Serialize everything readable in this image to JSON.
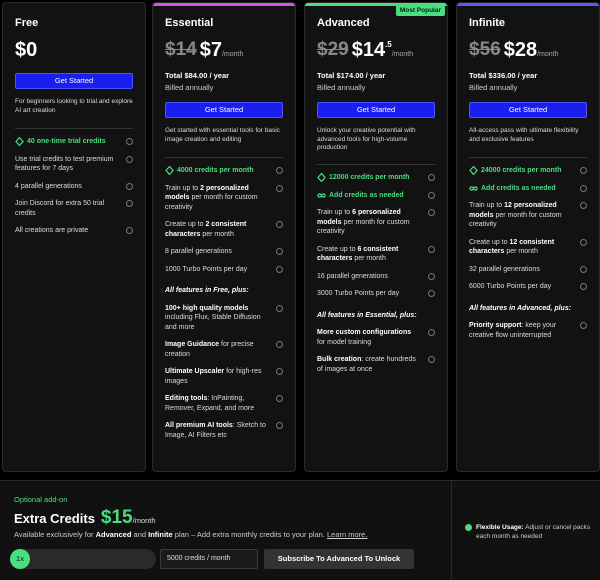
{
  "plans": [
    {
      "name": "Free",
      "price": "$0",
      "button": "Get Started",
      "description": "For beginners looking to trial and explore AI art creation",
      "features": [
        {
          "kind": "highlight",
          "icon": "diamond",
          "parts": [
            {
              "text": "40 one-time trial credits",
              "bold": false
            }
          ]
        },
        {
          "kind": "text",
          "parts": [
            {
              "text": "Use trial credits to test premium features for 7 days",
              "bold": false
            }
          ]
        },
        {
          "kind": "text",
          "parts": [
            {
              "text": "4 parallel generations",
              "bold": false
            }
          ]
        },
        {
          "kind": "text",
          "parts": [
            {
              "text": "Join Discord for extra 50 trial credits",
              "bold": false
            }
          ]
        },
        {
          "kind": "text",
          "parts": [
            {
              "text": "All creations are private",
              "bold": false
            }
          ]
        }
      ]
    },
    {
      "name": "Essential",
      "accent": "#d64ff0",
      "old_price": "$14",
      "price": "$7",
      "period": "/month",
      "total": "Total $84.00 / year",
      "billing": "Billed annually",
      "button": "Get Started",
      "description": "Get started with essential tools for basic image creation and editing",
      "features": [
        {
          "kind": "highlight",
          "icon": "diamond",
          "parts": [
            {
              "text": "4000 credits per month",
              "bold": false
            }
          ]
        },
        {
          "kind": "text",
          "parts": [
            {
              "text": "Train up to ",
              "bold": false
            },
            {
              "text": "2 personalized models",
              "bold": true
            },
            {
              "text": " per month for custom creativity",
              "bold": false
            }
          ]
        },
        {
          "kind": "text",
          "parts": [
            {
              "text": "Create up to ",
              "bold": false
            },
            {
              "text": "2 consistent characters",
              "bold": true
            },
            {
              "text": " per month",
              "bold": false
            }
          ]
        },
        {
          "kind": "text",
          "parts": [
            {
              "text": "8 parallel generations",
              "bold": false
            }
          ]
        },
        {
          "kind": "text",
          "parts": [
            {
              "text": "1000 Turbo Points per day",
              "bold": false
            }
          ]
        },
        {
          "kind": "section",
          "parts": [
            {
              "text": "All features in Free, plus:",
              "bold": true
            }
          ]
        },
        {
          "kind": "text",
          "parts": [
            {
              "text": "100+ high quality models",
              "bold": true
            },
            {
              "text": " including Flux, Stable Diffusion and more",
              "bold": false
            }
          ]
        },
        {
          "kind": "text",
          "parts": [
            {
              "text": "Image Guidance",
              "bold": true
            },
            {
              "text": " for precise creation",
              "bold": false
            }
          ]
        },
        {
          "kind": "text",
          "parts": [
            {
              "text": "Ultimate Upscaler",
              "bold": true
            },
            {
              "text": " for high-res images",
              "bold": false
            }
          ]
        },
        {
          "kind": "text",
          "parts": [
            {
              "text": "Editing tools",
              "bold": true
            },
            {
              "text": ": InPainting, Remover, Expand, and more",
              "bold": false
            }
          ]
        },
        {
          "kind": "text",
          "parts": [
            {
              "text": "All premium AI tools",
              "bold": true
            },
            {
              "text": ": Sketch to Image, AI Filters etc",
              "bold": false
            }
          ]
        }
      ]
    },
    {
      "name": "Advanced",
      "accent": "#4ade80",
      "badge": "Most Popular",
      "old_price": "$29",
      "price": "$14",
      "cents": ".5",
      "period": "/month",
      "total": "Total $174.00 / year",
      "billing": "Billed annually",
      "button": "Get Started",
      "description": "Unlock your creative potential with advanced tools for high-volume production",
      "features": [
        {
          "kind": "highlight",
          "icon": "diamond",
          "parts": [
            {
              "text": "12000 credits per month",
              "bold": false
            }
          ]
        },
        {
          "kind": "highlight",
          "icon": "infinity",
          "parts": [
            {
              "text": "Add credits as needed",
              "bold": false
            }
          ]
        },
        {
          "kind": "text",
          "parts": [
            {
              "text": "Train up to ",
              "bold": false
            },
            {
              "text": "6 personalized models",
              "bold": true
            },
            {
              "text": " per month for custom creativity",
              "bold": false
            }
          ]
        },
        {
          "kind": "text",
          "parts": [
            {
              "text": "Create up to ",
              "bold": false
            },
            {
              "text": "6 consistent characters",
              "bold": true
            },
            {
              "text": " per month",
              "bold": false
            }
          ]
        },
        {
          "kind": "text",
          "parts": [
            {
              "text": "16 parallel generations",
              "bold": false
            }
          ]
        },
        {
          "kind": "text",
          "parts": [
            {
              "text": "3000 Turbo Points per day",
              "bold": false
            }
          ]
        },
        {
          "kind": "section",
          "parts": [
            {
              "text": "All features in Essential, plus:",
              "bold": true
            }
          ]
        },
        {
          "kind": "text",
          "parts": [
            {
              "text": "More custom configurations",
              "bold": true
            },
            {
              "text": " for model training",
              "bold": false
            }
          ]
        },
        {
          "kind": "text",
          "parts": [
            {
              "text": "Bulk creation",
              "bold": true
            },
            {
              "text": ": create hundreds of images at once",
              "bold": false
            }
          ]
        }
      ]
    },
    {
      "name": "Infinite",
      "accent": "#5b5bf5",
      "old_price": "$56",
      "price": "$28",
      "period": "/month",
      "total": "Total $336.00 / year",
      "billing": "Billed annually",
      "button": "Get Started",
      "description": "All-access pass with ultimate flexibility and exclusive features",
      "features": [
        {
          "kind": "highlight",
          "icon": "diamond",
          "parts": [
            {
              "text": "24000 credits per month",
              "bold": false
            }
          ]
        },
        {
          "kind": "highlight",
          "icon": "infinity",
          "parts": [
            {
              "text": "Add credits as needed",
              "bold": false
            }
          ]
        },
        {
          "kind": "text",
          "parts": [
            {
              "text": "Train up to ",
              "bold": false
            },
            {
              "text": "12 personalized models",
              "bold": true
            },
            {
              "text": " per month for custom creativity",
              "bold": false
            }
          ]
        },
        {
          "kind": "text",
          "parts": [
            {
              "text": "Create up to ",
              "bold": false
            },
            {
              "text": "12 consistent characters",
              "bold": true
            },
            {
              "text": " per month",
              "bold": false
            }
          ]
        },
        {
          "kind": "text",
          "parts": [
            {
              "text": "32 parallel generations",
              "bold": false
            }
          ]
        },
        {
          "kind": "text",
          "parts": [
            {
              "text": "6000 Turbo Points per day",
              "bold": false
            }
          ]
        },
        {
          "kind": "section",
          "parts": [
            {
              "text": "All features in Advanced, plus:",
              "bold": true
            }
          ]
        },
        {
          "kind": "text",
          "parts": [
            {
              "text": "Priority support",
              "bold": true
            },
            {
              "text": ": keep your creative flow uninterrupted",
              "bold": false
            }
          ]
        }
      ]
    }
  ],
  "addon": {
    "tag": "Optional add-on",
    "title": "Extra Credits",
    "price": "$15",
    "period": "/month",
    "description": [
      {
        "text": "Available exclusively for ",
        "bold": false
      },
      {
        "text": "Advanced",
        "bold": true
      },
      {
        "text": " and ",
        "bold": false
      },
      {
        "text": "Infinite",
        "bold": true
      },
      {
        "text": " plan – Add extra monthly credits to your plan. ",
        "bold": false
      },
      {
        "text": "Learn more.",
        "bold": false,
        "link": true
      }
    ],
    "multiplier": "1x",
    "select": "5000 credits / month",
    "button": "Subscribe To Advanced To Unlock",
    "note": [
      {
        "text": "Flexible Usage:",
        "bold": true
      },
      {
        "text": " Adjust or cancel packs each month as needed",
        "bold": false
      }
    ]
  }
}
